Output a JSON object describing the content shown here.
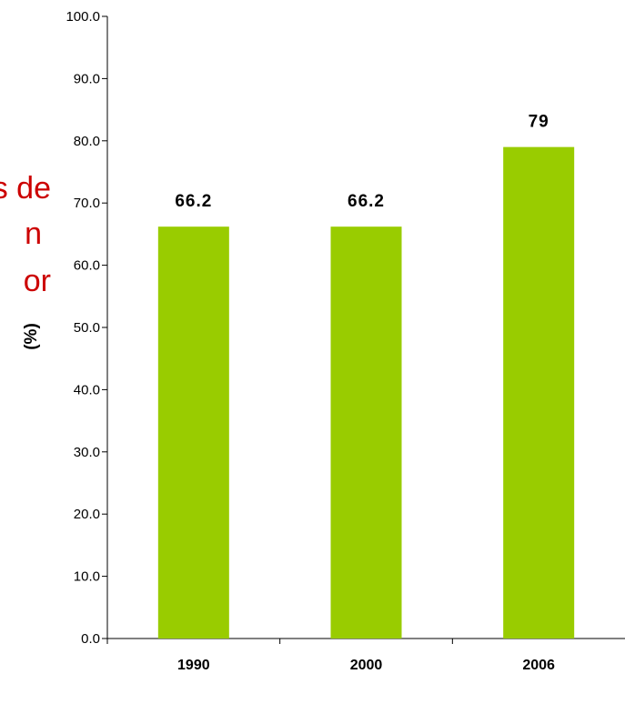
{
  "overlay_text": [
    "s de",
    "n",
    "or"
  ],
  "colors": {
    "bar": "#99cc00",
    "axis": "#000000",
    "overlay": "#cc0000"
  },
  "chart_data": {
    "type": "bar",
    "categories": [
      "1990",
      "2000",
      "2006"
    ],
    "values": [
      66.2,
      66.2,
      79
    ],
    "data_labels": [
      "66.2",
      "66.2",
      "79"
    ],
    "ylabel": "(%)",
    "xlabel": "",
    "title": "",
    "ylim": [
      0,
      100
    ],
    "yticks": [
      "0.0",
      "10.0",
      "20.0",
      "30.0",
      "40.0",
      "50.0",
      "60.0",
      "70.0",
      "80.0",
      "90.0",
      "100.0"
    ],
    "grid": false,
    "legend": "none"
  }
}
